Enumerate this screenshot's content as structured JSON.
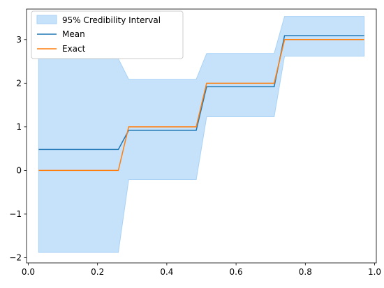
{
  "chart_data": {
    "type": "line",
    "title": "",
    "xlabel": "",
    "ylabel": "",
    "xlim": [
      -0.005,
      1.005
    ],
    "ylim": [
      -2.12,
      3.7
    ],
    "grid": false,
    "legend_position": "top-left",
    "x_ticks": [
      0.0,
      0.2,
      0.4,
      0.6,
      0.8,
      1.0
    ],
    "x_tick_labels": [
      "0.0",
      "0.2",
      "0.4",
      "0.6",
      "0.8",
      "1.0"
    ],
    "y_ticks": [
      -2,
      -1,
      0,
      1,
      2,
      3
    ],
    "y_tick_labels": [
      "−2",
      "−1",
      "0",
      "1",
      "2",
      "3"
    ],
    "x": [
      0.03,
      0.26,
      0.29,
      0.485,
      0.515,
      0.71,
      0.74,
      0.97
    ],
    "band": {
      "name": "95% Credibility Interval",
      "color": "#c6e2fb",
      "edge_color": "#a9d2f5",
      "lower": [
        -1.88,
        -1.88,
        -0.21,
        -0.21,
        1.23,
        1.23,
        2.62,
        2.62
      ],
      "upper": [
        2.56,
        2.56,
        2.09,
        2.09,
        2.68,
        2.68,
        3.53,
        3.53
      ]
    },
    "series": [
      {
        "name": "Mean",
        "color": "#1f77b4",
        "values": [
          0.48,
          0.48,
          0.92,
          0.92,
          1.92,
          1.92,
          3.09,
          3.09
        ]
      },
      {
        "name": "Exact",
        "color": "#ff7f0e",
        "values": [
          0.0,
          0.0,
          1.0,
          1.0,
          2.0,
          2.0,
          3.0,
          3.0
        ]
      }
    ]
  }
}
